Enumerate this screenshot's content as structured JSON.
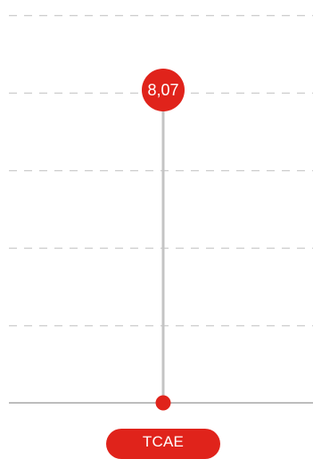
{
  "chart_data": {
    "type": "scatter",
    "categories": [
      "TCAE"
    ],
    "values": [
      8.07
    ],
    "value_labels": [
      "8,07"
    ],
    "ylim": [
      0,
      10
    ],
    "grid": true,
    "grid_style": "dashed"
  },
  "colors": {
    "accent": "#e0231b",
    "stem": "#c4c4c4",
    "grid": "#cccccc",
    "axis": "#bdbdbd",
    "label_text": "#ffffff"
  }
}
